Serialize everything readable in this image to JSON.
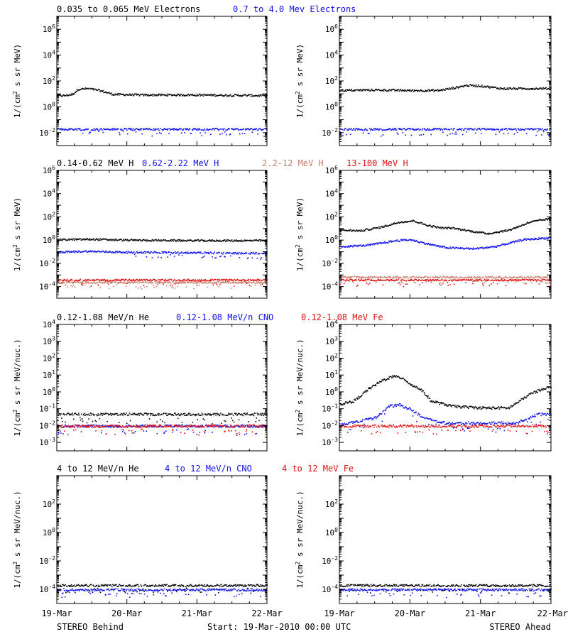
{
  "colors": {
    "black": "#000000",
    "blue": "#1010ee",
    "tan": "#c8806a",
    "red": "#e01010"
  },
  "footer": {
    "left": "STEREO Behind",
    "center": "Start: 19-Mar-2010 00:00 UTC",
    "right": "STEREO Ahead"
  },
  "x_ticks": [
    "19-Mar",
    "20-Mar",
    "21-Mar",
    "22-Mar"
  ],
  "chart_data": [
    {
      "type": "scatter",
      "row": 0,
      "legend": [
        {
          "text": "0.035 to 0.065 MeV Electrons",
          "color": "#000000"
        },
        {
          "text": "0.7 to 4.0 Mev Electrons",
          "color": "#1010ee"
        }
      ],
      "ylabel_left": "1/(cm^2 s sr MeV)",
      "ylabel_right": "1/(cm^2 s sr MeV)",
      "yscale": "log",
      "ylim": [
        -3,
        7
      ],
      "y_tick_exponents": [
        -2,
        0,
        2,
        4,
        6
      ],
      "xlim_days": [
        0,
        3
      ],
      "behind_series": [
        {
          "name": "0.035 to 0.065 MeV Electrons",
          "color": "#000000",
          "points": [
            [
              0,
              8
            ],
            [
              0.1,
              8
            ],
            [
              0.22,
              10
            ],
            [
              0.3,
              25
            ],
            [
              0.45,
              28
            ],
            [
              0.6,
              20
            ],
            [
              0.8,
              10
            ],
            [
              1.2,
              9
            ],
            [
              2.0,
              9
            ],
            [
              3.0,
              8
            ]
          ]
        },
        {
          "name": "0.7 to 4.0 Mev Electrons",
          "color": "#1010ee",
          "points": [
            [
              0,
              0.02
            ],
            [
              3.0,
              0.02
            ]
          ]
        }
      ],
      "ahead_series": [
        {
          "name": "0.035 to 0.065 MeV Electrons",
          "color": "#000000",
          "points": [
            [
              0,
              20
            ],
            [
              0.5,
              22
            ],
            [
              1.0,
              20
            ],
            [
              1.4,
              20
            ],
            [
              1.6,
              30
            ],
            [
              1.8,
              50
            ],
            [
              2.0,
              45
            ],
            [
              2.3,
              28
            ],
            [
              3.0,
              28
            ]
          ]
        },
        {
          "name": "0.7 to 4.0 Mev Electrons",
          "color": "#1010ee",
          "points": [
            [
              0,
              0.02
            ],
            [
              3.0,
              0.02
            ]
          ]
        }
      ]
    },
    {
      "type": "scatter",
      "row": 1,
      "legend": [
        {
          "text": "0.14-0.62 MeV H",
          "color": "#000000"
        },
        {
          "text": "0.62-2.22 MeV H",
          "color": "#1010ee"
        },
        {
          "text": "2.2-12 MeV H",
          "color": "#c8806a"
        },
        {
          "text": "13-100 MeV H",
          "color": "#e01010"
        }
      ],
      "ylabel_left": "1/(cm^2 s sr MeV)",
      "ylabel_right": "1/(cm^2 s sr MeV)",
      "yscale": "log",
      "ylim": [
        -5,
        6
      ],
      "y_tick_exponents": [
        -4,
        -2,
        0,
        2,
        4,
        6
      ],
      "xlim_days": [
        0,
        3
      ],
      "behind_series": [
        {
          "name": "0.14-0.62 MeV H",
          "color": "#000000",
          "points": [
            [
              0,
              1.2
            ],
            [
              0.5,
              1.3
            ],
            [
              1.0,
              1.1
            ],
            [
              2.0,
              1.0
            ],
            [
              3.0,
              1.0
            ]
          ]
        },
        {
          "name": "0.62-2.22 MeV H",
          "color": "#1010ee",
          "points": [
            [
              0,
              0.1
            ],
            [
              0.4,
              0.12
            ],
            [
              1.0,
              0.1
            ],
            [
              3.0,
              0.08
            ]
          ]
        },
        {
          "name": "2.2-12 MeV H",
          "color": "#c8806a",
          "points": [
            [
              0,
              0.00025
            ],
            [
              3.0,
              0.00025
            ]
          ]
        },
        {
          "name": "13-100 MeV H",
          "color": "#e01010",
          "points": [
            [
              0,
              0.0004
            ],
            [
              3.0,
              0.0004
            ]
          ]
        }
      ],
      "ahead_series": [
        {
          "name": "0.14-0.62 MeV H",
          "color": "#000000",
          "points": [
            [
              0,
              8
            ],
            [
              0.3,
              7
            ],
            [
              0.6,
              15
            ],
            [
              0.85,
              40
            ],
            [
              1.05,
              50
            ],
            [
              1.25,
              20
            ],
            [
              1.45,
              12
            ],
            [
              1.6,
              12
            ],
            [
              1.9,
              6
            ],
            [
              2.1,
              4
            ],
            [
              2.4,
              8
            ],
            [
              2.7,
              40
            ],
            [
              3.0,
              80
            ]
          ]
        },
        {
          "name": "0.62-2.22 MeV H",
          "color": "#1010ee",
          "points": [
            [
              0,
              0.3
            ],
            [
              0.4,
              0.4
            ],
            [
              0.8,
              1.0
            ],
            [
              1.0,
              1.2
            ],
            [
              1.2,
              0.6
            ],
            [
              1.5,
              0.25
            ],
            [
              1.9,
              0.2
            ],
            [
              2.2,
              0.3
            ],
            [
              2.6,
              1.2
            ],
            [
              3.0,
              1.8
            ]
          ]
        },
        {
          "name": "2.2-12 MeV H",
          "color": "#c8806a",
          "points": [
            [
              0,
              0.0007
            ],
            [
              3.0,
              0.0007
            ]
          ]
        },
        {
          "name": "13-100 MeV H",
          "color": "#e01010",
          "points": [
            [
              0,
              0.0004
            ],
            [
              3.0,
              0.0004
            ]
          ]
        }
      ]
    },
    {
      "type": "scatter",
      "row": 2,
      "legend": [
        {
          "text": "0.12-1.08 MeV/n He",
          "color": "#000000"
        },
        {
          "text": "0.12-1.08 MeV/n CNO",
          "color": "#1010ee"
        },
        {
          "text": "0.12-1.08 MeV Fe",
          "color": "#e01010"
        }
      ],
      "ylabel_left": "1/(cm^2 s sr MeV/nuc.)",
      "ylabel_right": "1/(cm^2 s sr MeV/nuc.)",
      "yscale": "log",
      "ylim": [
        -3.5,
        4
      ],
      "y_tick_exponents": [
        -3,
        -2,
        -1,
        0,
        1,
        2,
        3,
        4
      ],
      "xlim_days": [
        0,
        3
      ],
      "behind_series": [
        {
          "name": "0.12-1.08 MeV/n He",
          "color": "#000000",
          "points": [
            [
              0,
              0.05
            ],
            [
              3.0,
              0.05
            ]
          ]
        },
        {
          "name": "0.12-1.08 MeV/n CNO",
          "color": "#1010ee",
          "points": [
            [
              0,
              0.01
            ],
            [
              3.0,
              0.01
            ]
          ]
        },
        {
          "name": "0.12-1.08 MeV Fe",
          "color": "#e01010",
          "points": [
            [
              0,
              0.01
            ],
            [
              3.0,
              0.01
            ]
          ]
        }
      ],
      "ahead_series": [
        {
          "name": "0.12-1.08 MeV/n He",
          "color": "#000000",
          "points": [
            [
              0,
              0.2
            ],
            [
              0.2,
              0.3
            ],
            [
              0.4,
              1.5
            ],
            [
              0.6,
              5
            ],
            [
              0.75,
              9
            ],
            [
              0.9,
              7
            ],
            [
              1.0,
              3
            ],
            [
              1.15,
              1.5
            ],
            [
              1.3,
              0.3
            ],
            [
              1.6,
              0.15
            ],
            [
              2.0,
              0.12
            ],
            [
              2.4,
              0.12
            ],
            [
              2.7,
              0.8
            ],
            [
              2.9,
              1.8
            ],
            [
              3.0,
              2
            ]
          ]
        },
        {
          "name": "0.12-1.08 MeV/n CNO",
          "color": "#1010ee",
          "points": [
            [
              0,
              0.012
            ],
            [
              0.5,
              0.03
            ],
            [
              0.7,
              0.15
            ],
            [
              0.85,
              0.18
            ],
            [
              1.0,
              0.1
            ],
            [
              1.2,
              0.03
            ],
            [
              1.5,
              0.015
            ],
            [
              2.5,
              0.015
            ],
            [
              2.8,
              0.05
            ],
            [
              3.0,
              0.05
            ]
          ]
        },
        {
          "name": "0.12-1.08 MeV Fe",
          "color": "#e01010",
          "points": [
            [
              0,
              0.01
            ],
            [
              3.0,
              0.01
            ]
          ]
        }
      ]
    },
    {
      "type": "scatter",
      "row": 3,
      "legend": [
        {
          "text": "4 to 12 MeV/n He",
          "color": "#000000"
        },
        {
          "text": "4 to 12 MeV/n CNO",
          "color": "#1010ee"
        },
        {
          "text": "4 to 12 MeV Fe",
          "color": "#e01010"
        }
      ],
      "ylabel_left": "1/(cm^2 s sr MeV/nuc.)",
      "ylabel_right": "1/(cm^2 s sr MeV/nuc.)",
      "yscale": "log",
      "ylim": [
        -5,
        4
      ],
      "y_tick_exponents": [
        -4,
        -2,
        0,
        2
      ],
      "xlim_days": [
        0,
        3
      ],
      "behind_series": [
        {
          "name": "4 to 12 MeV/n He",
          "color": "#000000",
          "points": [
            [
              0,
              0.0002
            ],
            [
              3.0,
              0.0002
            ]
          ]
        },
        {
          "name": "4 to 12 MeV/n CNO",
          "color": "#1010ee",
          "points": [
            [
              0,
              0.0001
            ],
            [
              3.0,
              0.0001
            ]
          ]
        }
      ],
      "ahead_series": [
        {
          "name": "4 to 12 MeV/n He",
          "color": "#000000",
          "points": [
            [
              0,
              0.0002
            ],
            [
              3.0,
              0.0002
            ]
          ]
        },
        {
          "name": "4 to 12 MeV/n CNO",
          "color": "#1010ee",
          "points": [
            [
              0,
              0.0001
            ],
            [
              3.0,
              0.0001
            ]
          ]
        }
      ]
    }
  ]
}
